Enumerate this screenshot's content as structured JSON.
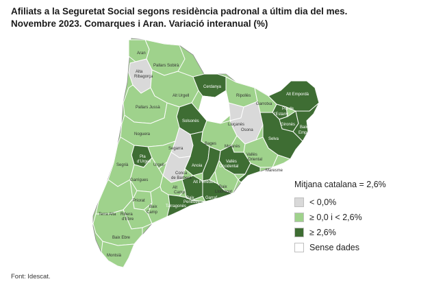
{
  "title": {
    "line1": "Afiliats a la Seguretat Social segons residència padronal a últim dia del mes.",
    "line2": "Novembre 2023. Comarques i Aran. Variació interanual (%)"
  },
  "colors": {
    "negative": "#d9d9d9",
    "low": "#9fd28c",
    "high": "#3e6d33",
    "no_data": "#ffffff",
    "border": "#ffffff",
    "outline": "#8a8a8a"
  },
  "legend": {
    "title": "Mitjana catalana = 2,6%",
    "items": [
      {
        "label": "< 0,0%",
        "color": "#d9d9d9"
      },
      {
        "label": "≥ 0,0 i < 2,6%",
        "color": "#9fd28c"
      },
      {
        "label": "≥ 2,6%",
        "color": "#3e6d33"
      },
      {
        "label": "Sense dades",
        "color": "#ffffff"
      }
    ]
  },
  "regions": [
    {
      "name": "Aran",
      "category": "low"
    },
    {
      "name": "Pallars Sobirà",
      "category": "low"
    },
    {
      "name": "Alta Ribagorça",
      "category": "negative"
    },
    {
      "name": "Alt Urgell",
      "category": "low"
    },
    {
      "name": "Cerdanya",
      "category": "high"
    },
    {
      "name": "Ripollès",
      "category": "low"
    },
    {
      "name": "Alt Empordà",
      "category": "high"
    },
    {
      "name": "Garrotxa",
      "category": "low"
    },
    {
      "name": "Pla de l'Estany",
      "category": "high"
    },
    {
      "name": "Pallars Jussà",
      "category": "low"
    },
    {
      "name": "Berguedà",
      "category": "high"
    },
    {
      "name": "Solsonès",
      "category": "high"
    },
    {
      "name": "Lluçanès",
      "category": "negative"
    },
    {
      "name": "Osona",
      "category": "negative"
    },
    {
      "name": "Gironès",
      "category": "high"
    },
    {
      "name": "Baix Empordà",
      "category": "high"
    },
    {
      "name": "Selva",
      "category": "high"
    },
    {
      "name": "Noguera",
      "category": "low"
    },
    {
      "name": "Bages",
      "category": "low"
    },
    {
      "name": "Moianès",
      "category": "low"
    },
    {
      "name": "Segarra",
      "category": "negative"
    },
    {
      "name": "Vallès Oriental",
      "category": "low"
    },
    {
      "name": "Maresme",
      "category": "low"
    },
    {
      "name": "Pla d'Urgell",
      "category": "high"
    },
    {
      "name": "Urgell",
      "category": "low"
    },
    {
      "name": "Anoia",
      "category": "high"
    },
    {
      "name": "Vallès Occidental",
      "category": "high"
    },
    {
      "name": "Segrià",
      "category": "low"
    },
    {
      "name": "Conca de Barberà",
      "category": "negative"
    },
    {
      "name": "Barcelonès",
      "category": "high"
    },
    {
      "name": "Garrigues",
      "category": "low"
    },
    {
      "name": "Alt Penedès",
      "category": "high"
    },
    {
      "name": "Alt Camp",
      "category": "low"
    },
    {
      "name": "Baix Llobregat",
      "category": "low"
    },
    {
      "name": "Baix Penedès",
      "category": "high"
    },
    {
      "name": "Garraf",
      "category": "high"
    },
    {
      "name": "Priorat",
      "category": "low"
    },
    {
      "name": "Baix Camp",
      "category": "low"
    },
    {
      "name": "Tarragonès",
      "category": "high"
    },
    {
      "name": "Terra Alta",
      "category": "low"
    },
    {
      "name": "Ribera d'Ebre",
      "category": "low"
    },
    {
      "name": "Baix Ebre",
      "category": "low"
    },
    {
      "name": "Montsià",
      "category": "low"
    }
  ],
  "source": "Font: Idescat."
}
